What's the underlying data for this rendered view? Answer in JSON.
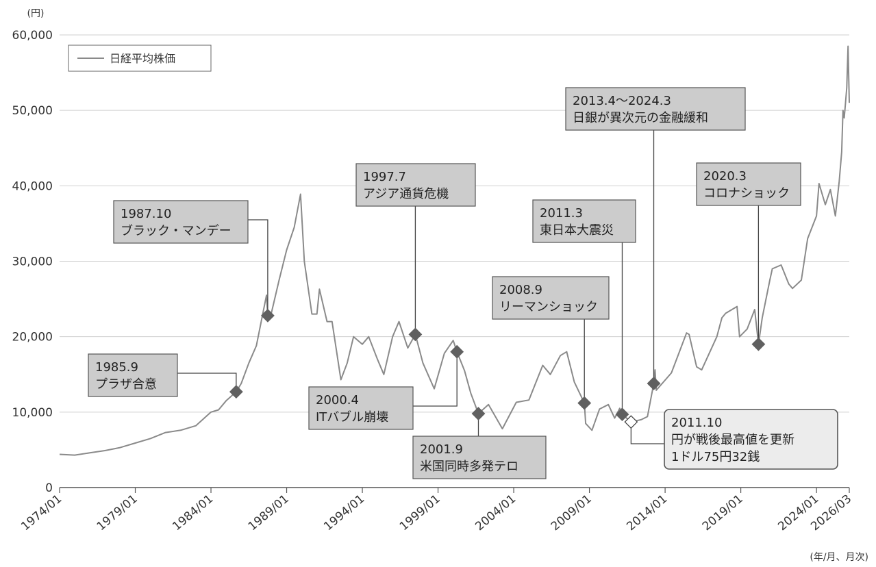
{
  "chart_data": {
    "type": "line",
    "y_unit": "(円)",
    "x_unit": "(年/月、月次)",
    "ylim": [
      0,
      60000
    ],
    "xlim": [
      "1974/01",
      "2026/03"
    ],
    "y_ticks": [
      "0",
      "10,000",
      "20,000",
      "30,000",
      "40,000",
      "50,000",
      "60,000"
    ],
    "y_tick_values": [
      0,
      10000,
      20000,
      30000,
      40000,
      50000,
      60000
    ],
    "x_ticks": [
      "1974/01",
      "1979/01",
      "1984/01",
      "1989/01",
      "1994/01",
      "1999/01",
      "2004/01",
      "2009/01",
      "2014/01",
      "2019/01",
      "2024/01",
      "2026/03"
    ],
    "grid": "horizontal",
    "legend": {
      "label": "日経平均株価",
      "position": "top-left"
    },
    "series": [
      {
        "name": "日経平均株価",
        "x": [
          "1974/01",
          "1975/01",
          "1976/01",
          "1977/01",
          "1978/01",
          "1979/01",
          "1980/01",
          "1981/01",
          "1982/01",
          "1983/01",
          "1984/01",
          "1984/07",
          "1985/01",
          "1985/09",
          "1986/01",
          "1986/07",
          "1987/01",
          "1987/09",
          "1987/10",
          "1988/01",
          "1988/07",
          "1989/01",
          "1989/07",
          "1989/12",
          "1990/03",
          "1990/09",
          "1991/01",
          "1991/03",
          "1991/09",
          "1992/01",
          "1992/08",
          "1993/01",
          "1993/06",
          "1994/01",
          "1994/06",
          "1995/01",
          "1995/06",
          "1996/01",
          "1996/06",
          "1997/01",
          "1997/07",
          "1998/01",
          "1998/10",
          "1999/06",
          "2000/01",
          "2000/04",
          "2000/10",
          "2001/03",
          "2001/09",
          "2002/05",
          "2003/04",
          "2004/03",
          "2005/01",
          "2005/12",
          "2006/06",
          "2007/02",
          "2007/07",
          "2008/01",
          "2008/09",
          "2008/10",
          "2009/03",
          "2009/09",
          "2010/04",
          "2010/09",
          "2011/01",
          "2011/03",
          "2011/10",
          "2012/06",
          "2012/11",
          "2013/04",
          "2013/05",
          "2013/06",
          "2014/06",
          "2015/06",
          "2015/08",
          "2016/02",
          "2016/06",
          "2017/06",
          "2017/10",
          "2018/01",
          "2018/10",
          "2018/12",
          "2019/06",
          "2019/12",
          "2020/03",
          "2020/06",
          "2020/12",
          "2021/02",
          "2021/09",
          "2022/03",
          "2022/06",
          "2023/01",
          "2023/06",
          "2024/01",
          "2024/03",
          "2024/08",
          "2024/12",
          "2025/04",
          "2025/07",
          "2025/09",
          "2025/10",
          "2025/11",
          "2025/12",
          "2026/01",
          "2026/02",
          "2026/03"
        ],
        "values": [
          4400,
          4300,
          4600,
          4900,
          5300,
          5900,
          6500,
          7300,
          7600,
          8200,
          10000,
          10300,
          11500,
          12700,
          13800,
          16500,
          18800,
          25500,
          22800,
          23200,
          27500,
          31500,
          34500,
          38900,
          30000,
          23000,
          23000,
          26300,
          22000,
          22000,
          14300,
          16500,
          20000,
          19000,
          20000,
          17000,
          15000,
          20000,
          22000,
          18500,
          20300,
          16500,
          13100,
          17800,
          19500,
          18000,
          15500,
          12500,
          9800,
          11000,
          7800,
          11300,
          11600,
          16200,
          15000,
          17500,
          18000,
          14000,
          11200,
          8500,
          7600,
          10400,
          11000,
          9200,
          10500,
          9700,
          8700,
          9000,
          9400,
          13800,
          15600,
          12900,
          15200,
          20500,
          20300,
          16000,
          15600,
          20000,
          22500,
          23100,
          24000,
          20000,
          21000,
          23600,
          19000,
          22500,
          27500,
          29000,
          29500,
          27000,
          26400,
          27500,
          33000,
          36000,
          40300,
          37500,
          39500,
          36000,
          40600,
          44500,
          50000,
          49000,
          51000,
          53000,
          58500,
          51000
        ]
      }
    ],
    "annotations": [
      {
        "date": "1985/09",
        "value": 12700,
        "lines": [
          "1985.9",
          "プラザ合意"
        ]
      },
      {
        "date": "1987/10",
        "value": 22800,
        "lines": [
          "1987.10",
          "ブラック・マンデー"
        ]
      },
      {
        "date": "1997/07",
        "value": 20300,
        "lines": [
          "1997.7",
          "アジア通貨危機"
        ]
      },
      {
        "date": "2000/04",
        "value": 18000,
        "lines": [
          "2000.4",
          "ITバブル崩壊"
        ]
      },
      {
        "date": "2001/09",
        "value": 9800,
        "lines": [
          "2001.9",
          "米国同時多発テロ"
        ]
      },
      {
        "date": "2008/09",
        "value": 11200,
        "lines": [
          "2008.9",
          "リーマンショック"
        ]
      },
      {
        "date": "2011/03",
        "value": 9700,
        "lines": [
          "2011.3",
          "東日本大震災"
        ]
      },
      {
        "date": "2011/10",
        "value": 8700,
        "lines": [
          "2011.10",
          "円が戦後最高値を更新",
          "1ドル75円32銭"
        ],
        "highlight": true
      },
      {
        "date": "2013/04",
        "value": 13800,
        "lines": [
          "2013.4〜2024.3",
          "日銀が異次元の金融緩和"
        ]
      },
      {
        "date": "2020/03",
        "value": 19000,
        "lines": [
          "2020.3",
          "コロナショック"
        ]
      }
    ],
    "colors": {
      "line": "#8a8a8a",
      "marker": "#606060",
      "box_fill": "#cccccc",
      "box_stroke": "#555555",
      "highlight_fill": "#ececec",
      "grid": "#cfcfcf"
    }
  }
}
